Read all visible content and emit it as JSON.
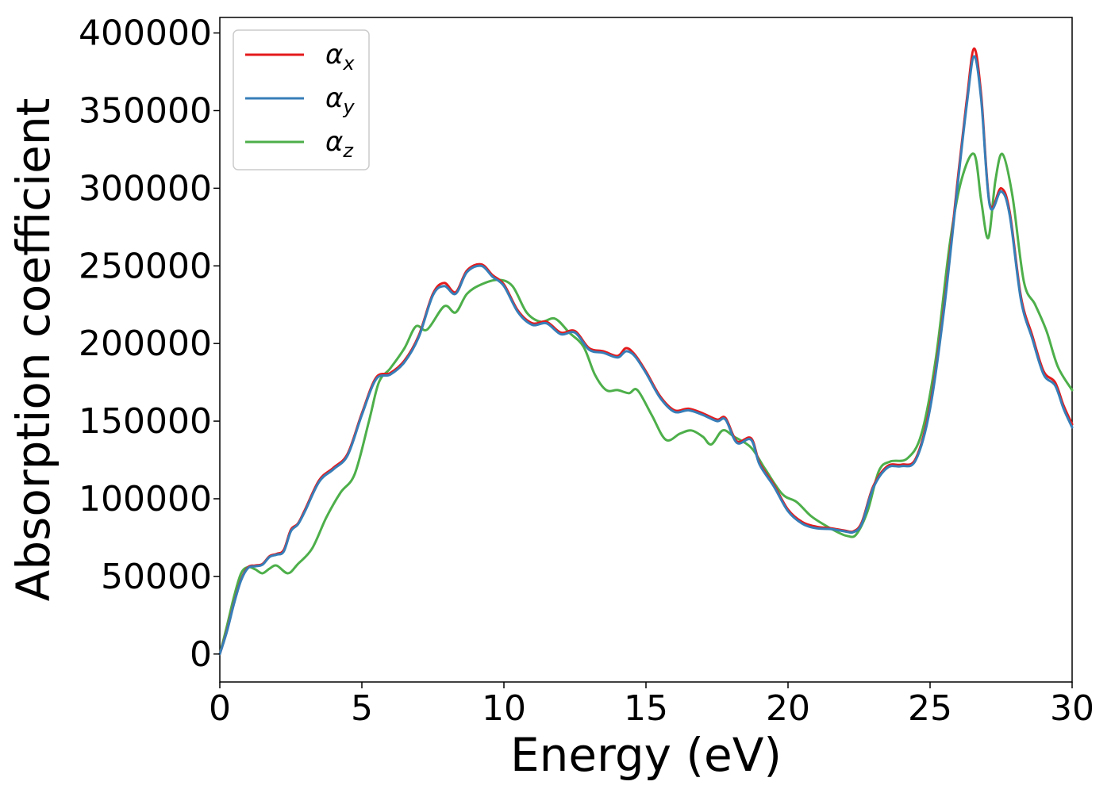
{
  "chart_data": {
    "type": "line",
    "title": "",
    "xlabel": "Energy (eV)",
    "ylabel": "Absorption coefficient",
    "xlim": [
      0,
      30
    ],
    "ylim": [
      -18000,
      410000
    ],
    "xticks": [
      0,
      5,
      10,
      15,
      20,
      25,
      30
    ],
    "yticks": [
      0,
      50000,
      100000,
      150000,
      200000,
      250000,
      300000,
      350000,
      400000
    ],
    "xtick_labels": [
      "0",
      "5",
      "10",
      "15",
      "20",
      "25",
      "30"
    ],
    "ytick_labels": [
      "0",
      "50000",
      "100000",
      "150000",
      "200000",
      "250000",
      "300000",
      "350000",
      "400000"
    ],
    "grid": false,
    "legend_position": "top-left",
    "series": [
      {
        "name": "α",
        "subscript": "x",
        "color": "#e41a1c",
        "x": [
          0,
          0.25,
          0.5,
          0.75,
          1,
          1.25,
          1.5,
          1.75,
          2,
          2.25,
          2.5,
          2.75,
          3,
          3.5,
          4,
          4.5,
          5,
          5.5,
          6,
          6.5,
          7,
          7.5,
          7.9,
          8.3,
          8.7,
          9.2,
          9.6,
          10,
          10.5,
          11,
          11.5,
          12,
          12.5,
          13,
          13.5,
          14,
          14.3,
          14.6,
          15,
          15.5,
          16,
          16.5,
          17,
          17.5,
          17.8,
          18.2,
          18.7,
          19,
          19.5,
          20,
          20.5,
          21,
          21.5,
          22,
          22.3,
          22.6,
          23,
          23.5,
          24,
          24.5,
          25,
          25.5,
          26,
          26.3,
          26.55,
          26.8,
          27.1,
          27.5,
          27.8,
          28.2,
          28.6,
          29,
          29.4,
          29.7,
          30
        ],
        "y": [
          0,
          15000,
          33000,
          48000,
          56000,
          57000,
          58000,
          63000,
          64500,
          67000,
          80000,
          84000,
          93000,
          112000,
          120000,
          129000,
          155000,
          178000,
          181000,
          189000,
          205000,
          232000,
          239000,
          233000,
          247000,
          251000,
          244000,
          238000,
          221000,
          213000,
          214000,
          207000,
          208000,
          197000,
          195000,
          192000,
          197000,
          193000,
          182000,
          166000,
          157000,
          158000,
          155000,
          151000,
          152000,
          137000,
          139000,
          123000,
          109000,
          93000,
          85000,
          82000,
          81000,
          79500,
          79000,
          85000,
          108000,
          121000,
          122000,
          126000,
          160000,
          225000,
          310000,
          358000,
          390000,
          360000,
          290000,
          300000,
          285000,
          230000,
          205000,
          182000,
          175000,
          160000,
          148000
        ]
      },
      {
        "name": "α",
        "subscript": "y",
        "color": "#377eb8",
        "x": [
          0,
          0.25,
          0.5,
          0.75,
          1,
          1.25,
          1.5,
          1.75,
          2,
          2.25,
          2.5,
          2.75,
          3,
          3.5,
          4,
          4.5,
          5,
          5.5,
          6,
          6.5,
          7,
          7.5,
          7.9,
          8.3,
          8.7,
          9.2,
          9.6,
          10,
          10.5,
          11,
          11.5,
          12,
          12.5,
          13,
          13.5,
          14,
          14.3,
          14.6,
          15,
          15.5,
          16,
          16.5,
          17,
          17.5,
          17.8,
          18.2,
          18.7,
          19,
          19.5,
          20,
          20.5,
          21,
          21.5,
          22,
          22.3,
          22.6,
          23,
          23.5,
          24,
          24.5,
          25,
          25.5,
          26,
          26.3,
          26.55,
          26.8,
          27.1,
          27.5,
          27.8,
          28.2,
          28.6,
          29,
          29.4,
          29.7,
          30
        ],
        "y": [
          0,
          14500,
          32500,
          47500,
          55500,
          56500,
          57500,
          62500,
          64000,
          66000,
          79000,
          83500,
          92000,
          111000,
          119000,
          128000,
          154000,
          177000,
          180000,
          188000,
          204000,
          231000,
          237000,
          232000,
          246000,
          250000,
          243000,
          237000,
          220000,
          212000,
          213000,
          206000,
          207000,
          196000,
          194000,
          191000,
          195000,
          192000,
          181000,
          165000,
          156000,
          157000,
          154000,
          150000,
          151000,
          136000,
          138000,
          122000,
          108000,
          92000,
          84000,
          81000,
          80500,
          79000,
          78500,
          84000,
          107000,
          120000,
          121000,
          125000,
          158000,
          223000,
          307000,
          355000,
          385000,
          357000,
          289000,
          298000,
          283000,
          228000,
          203000,
          180000,
          173000,
          158000,
          146000
        ]
      },
      {
        "name": "α",
        "subscript": "z",
        "color": "#4daf4a",
        "x": [
          0,
          0.25,
          0.5,
          0.75,
          1,
          1.25,
          1.5,
          1.75,
          2,
          2.4,
          2.75,
          3.25,
          3.75,
          4.25,
          4.75,
          5.25,
          5.6,
          6,
          6.5,
          6.9,
          7.3,
          7.9,
          8.3,
          8.7,
          9.2,
          9.8,
          10.3,
          10.8,
          11.3,
          11.8,
          12.3,
          12.8,
          13.2,
          13.6,
          14,
          14.4,
          14.7,
          15.2,
          15.7,
          16.2,
          16.6,
          17,
          17.3,
          17.7,
          18.1,
          18.7,
          19.2,
          19.8,
          20.3,
          20.8,
          21.3,
          21.8,
          22.1,
          22.4,
          22.8,
          23.2,
          23.6,
          24.2,
          24.7,
          25.2,
          25.7,
          26.1,
          26.55,
          26.8,
          27.05,
          27.3,
          27.55,
          27.9,
          28.3,
          28.7,
          29.1,
          29.5,
          30
        ],
        "y": [
          0,
          18000,
          37000,
          52000,
          56000,
          54500,
          52000,
          55000,
          57000,
          52000,
          58000,
          68000,
          88000,
          104000,
          116000,
          150000,
          175000,
          184000,
          197000,
          211000,
          209000,
          224000,
          220000,
          232000,
          238000,
          241000,
          237000,
          220000,
          214000,
          216000,
          207000,
          198000,
          180000,
          170000,
          170000,
          168000,
          170000,
          154000,
          138000,
          142000,
          144000,
          140000,
          135000,
          144000,
          140000,
          133000,
          119000,
          103000,
          98000,
          89000,
          83000,
          78000,
          76000,
          77000,
          92000,
          118000,
          124000,
          126000,
          142000,
          190000,
          265000,
          305000,
          322000,
          292000,
          268000,
          305000,
          322000,
          295000,
          240000,
          225000,
          208000,
          185000,
          170000
        ]
      }
    ]
  }
}
